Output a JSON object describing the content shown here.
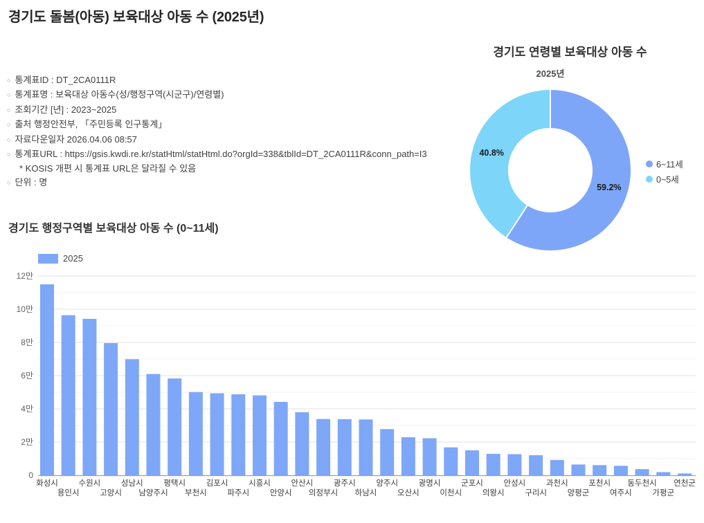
{
  "page": {
    "title": "경기도 돌봄(아동) 보육대상 아동 수 (2025년)"
  },
  "metadata": {
    "bullet": "○",
    "items": [
      {
        "text": "통계표ID : DT_2CA0111R"
      },
      {
        "text": "통계표명 : 보육대상 아동수(성/행정구역(시군구)/연령별)"
      },
      {
        "text": "조회기간 [년] : 2023~2025"
      },
      {
        "text": "출처 행정안전부, 「주민등록 인구통계」"
      },
      {
        "text": "자료다운일자 2026.04.06 08:57"
      },
      {
        "text": "통계표URL : https://gsis.kwdi.re.kr/statHtml/statHtml.do?orgId=338&tblId=DT_2CA0111R&conn_path=I3",
        "note": "* KOSIS 개편 시 통계표 URL은 달라질 수 있음"
      },
      {
        "text": "단위 : 명"
      }
    ]
  },
  "chart_data": [
    {
      "type": "pie",
      "donut": true,
      "title": "경기도 연령별 보육대상 아동 수",
      "subtitle": "2025년",
      "labels": [
        "6~11세",
        "0~5세"
      ],
      "values": [
        59.2,
        40.8
      ],
      "slice_labels": [
        "59.2%",
        "40.8%"
      ],
      "unit": "%",
      "colors": [
        "#7ea6f8",
        "#7dd5f9"
      ],
      "slice_label_color": "#1a1a1a",
      "legend_position": "right"
    },
    {
      "type": "bar",
      "title": "경기도 행정구역별 보육대상 아동 수 (0~11세)",
      "categories": [
        "화성시",
        "용인시",
        "수원시",
        "고양시",
        "성남시",
        "남양주시",
        "평택시",
        "부천시",
        "김포시",
        "파주시",
        "시흥시",
        "안양시",
        "안산시",
        "의정부시",
        "광주시",
        "하남시",
        "양주시",
        "오산시",
        "광명시",
        "이천시",
        "군포시",
        "의왕시",
        "안성시",
        "구리시",
        "과천시",
        "양평군",
        "포천시",
        "여주시",
        "동두천시",
        "가평군",
        "연천군"
      ],
      "series": [
        {
          "name": "2025",
          "values": [
            115000,
            96400,
            94200,
            79600,
            69900,
            61000,
            58300,
            50100,
            49400,
            48800,
            48100,
            44200,
            38000,
            33900,
            33800,
            33600,
            27800,
            22900,
            22300,
            16800,
            15000,
            12900,
            12700,
            12100,
            9200,
            6500,
            6100,
            5700,
            3700,
            1900,
            1100
          ]
        }
      ],
      "xlabel": "",
      "ylabel": "",
      "unit": "명",
      "ylim": [
        0,
        120000
      ],
      "ytick_step": 20000,
      "minor_step": 10000,
      "ytick_labels": [
        "0",
        "2만",
        "4만",
        "6만",
        "8만",
        "10만",
        "12만"
      ],
      "grid": true,
      "bar_color": "#7ea7f8",
      "axis_color": "#9e9e9e",
      "legend_position": "top-left"
    }
  ]
}
